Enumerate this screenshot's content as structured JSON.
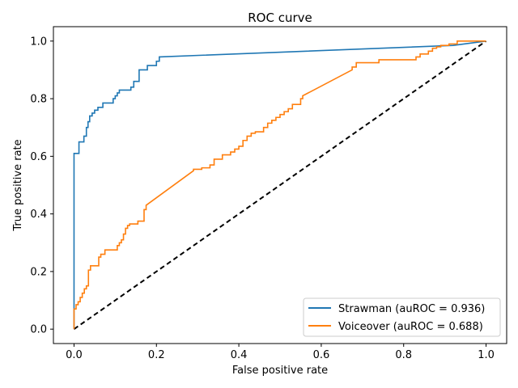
{
  "chart_data": {
    "type": "line",
    "title": "ROC curve",
    "xlabel": "False positive rate",
    "ylabel": "True positive rate",
    "xlim": [
      -0.05,
      1.05
    ],
    "ylim": [
      -0.05,
      1.05
    ],
    "xticks": [
      "0.0",
      "0.2",
      "0.4",
      "0.6",
      "0.8",
      "1.0"
    ],
    "yticks": [
      "0.0",
      "0.2",
      "0.4",
      "0.6",
      "0.8",
      "1.0"
    ],
    "grid": false,
    "legend_position": "lower-right",
    "diagonal": {
      "x": [
        0,
        1
      ],
      "y": [
        0,
        1
      ],
      "color": "#000000",
      "style": "dashed"
    },
    "series": [
      {
        "name": "Strawman (auROC = 0.936)",
        "color": "#1f77b4",
        "x": [
          0.0,
          0.0,
          0.0,
          0.012,
          0.012,
          0.024,
          0.024,
          0.03,
          0.03,
          0.034,
          0.034,
          0.038,
          0.038,
          0.044,
          0.044,
          0.05,
          0.05,
          0.058,
          0.058,
          0.07,
          0.07,
          0.095,
          0.095,
          0.1,
          0.1,
          0.105,
          0.105,
          0.11,
          0.11,
          0.138,
          0.138,
          0.145,
          0.145,
          0.158,
          0.158,
          0.178,
          0.178,
          0.2,
          0.2,
          0.207,
          0.207,
          0.92,
          1.0
        ],
        "y": [
          0.0,
          0.07,
          0.61,
          0.61,
          0.65,
          0.65,
          0.67,
          0.67,
          0.7,
          0.7,
          0.72,
          0.72,
          0.74,
          0.74,
          0.75,
          0.75,
          0.76,
          0.76,
          0.77,
          0.77,
          0.785,
          0.785,
          0.8,
          0.8,
          0.81,
          0.81,
          0.82,
          0.82,
          0.83,
          0.83,
          0.84,
          0.84,
          0.86,
          0.86,
          0.9,
          0.9,
          0.915,
          0.915,
          0.93,
          0.93,
          0.945,
          0.985,
          1.0
        ]
      },
      {
        "name": "Voiceover (auROC = 0.688)",
        "color": "#ff7f0e",
        "x": [
          0.0,
          0.0,
          0.005,
          0.005,
          0.01,
          0.01,
          0.015,
          0.015,
          0.02,
          0.02,
          0.025,
          0.025,
          0.03,
          0.03,
          0.035,
          0.035,
          0.04,
          0.04,
          0.06,
          0.06,
          0.065,
          0.065,
          0.075,
          0.075,
          0.105,
          0.105,
          0.11,
          0.11,
          0.115,
          0.115,
          0.12,
          0.12,
          0.125,
          0.125,
          0.13,
          0.13,
          0.135,
          0.135,
          0.155,
          0.155,
          0.17,
          0.17,
          0.175,
          0.175,
          0.29,
          0.29,
          0.31,
          0.31,
          0.33,
          0.33,
          0.34,
          0.34,
          0.36,
          0.36,
          0.38,
          0.38,
          0.39,
          0.39,
          0.4,
          0.4,
          0.41,
          0.41,
          0.42,
          0.42,
          0.43,
          0.43,
          0.44,
          0.44,
          0.46,
          0.46,
          0.47,
          0.47,
          0.48,
          0.48,
          0.49,
          0.49,
          0.5,
          0.5,
          0.51,
          0.51,
          0.52,
          0.52,
          0.53,
          0.53,
          0.55,
          0.55,
          0.555,
          0.555,
          0.675,
          0.675,
          0.685,
          0.685,
          0.74,
          0.74,
          0.83,
          0.83,
          0.84,
          0.84,
          0.86,
          0.86,
          0.87,
          0.87,
          0.88,
          0.88,
          0.89,
          0.89,
          0.91,
          0.91,
          0.93,
          0.93,
          1.0
        ],
        "y": [
          0.0,
          0.07,
          0.07,
          0.085,
          0.085,
          0.095,
          0.095,
          0.11,
          0.11,
          0.125,
          0.125,
          0.14,
          0.14,
          0.15,
          0.15,
          0.205,
          0.205,
          0.22,
          0.22,
          0.25,
          0.25,
          0.26,
          0.26,
          0.275,
          0.275,
          0.29,
          0.29,
          0.3,
          0.3,
          0.31,
          0.31,
          0.33,
          0.33,
          0.35,
          0.35,
          0.36,
          0.36,
          0.365,
          0.365,
          0.375,
          0.375,
          0.415,
          0.415,
          0.43,
          0.55,
          0.555,
          0.555,
          0.56,
          0.56,
          0.57,
          0.57,
          0.59,
          0.59,
          0.605,
          0.605,
          0.615,
          0.615,
          0.625,
          0.625,
          0.635,
          0.635,
          0.655,
          0.655,
          0.67,
          0.67,
          0.68,
          0.68,
          0.685,
          0.685,
          0.7,
          0.7,
          0.715,
          0.715,
          0.725,
          0.725,
          0.735,
          0.735,
          0.745,
          0.745,
          0.755,
          0.755,
          0.765,
          0.765,
          0.78,
          0.78,
          0.8,
          0.8,
          0.81,
          0.9,
          0.91,
          0.91,
          0.925,
          0.925,
          0.935,
          0.935,
          0.945,
          0.945,
          0.955,
          0.955,
          0.965,
          0.965,
          0.975,
          0.975,
          0.98,
          0.98,
          0.985,
          0.985,
          0.99,
          0.99,
          1.0,
          1.0
        ]
      }
    ]
  }
}
